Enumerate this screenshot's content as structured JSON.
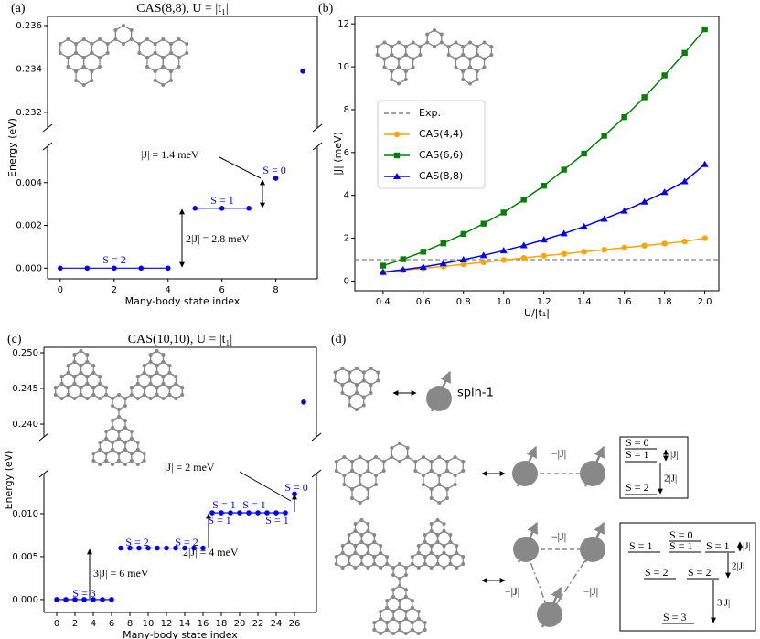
{
  "chart_data": [
    {
      "type": "scatter",
      "label": "(a)",
      "title": "CAS(8,8), U = |t₁|",
      "xlabel": "Many-body state index",
      "ylabel": "Energy (eV)",
      "color": "#0000ff",
      "x": [
        0,
        1,
        2,
        3,
        4,
        5,
        6,
        7,
        8,
        9
      ],
      "values": [
        0,
        0,
        0,
        0,
        0,
        0.0028,
        0.0028,
        0.0028,
        0.0042,
        0.2339
      ],
      "xlim": [
        -0.47,
        9.54
      ],
      "xticks": [
        0,
        2,
        4,
        6,
        8
      ],
      "ylim_lower": [
        -0.0005,
        0.0057
      ],
      "yticks_lower": [
        {
          "value": 0,
          "label": "0.000"
        },
        0.002,
        0.004
      ],
      "ylim_upper": [
        0.23128,
        0.23642
      ],
      "yticks_upper": [
        0.232,
        0.234,
        0.236
      ],
      "annotations": [
        "S = 2",
        "S = 1",
        "S = 0",
        "|J| = 1.4 meV",
        "2|J| = 2.8 meV"
      ]
    },
    {
      "type": "line",
      "label": "(b)",
      "xlabel": "U/|t₁|",
      "ylabel": "|J| (meV)",
      "x": [
        0.4,
        0.5,
        0.6,
        0.7,
        0.8,
        0.9,
        1.0,
        1.1,
        1.2,
        1.3,
        1.4,
        1.5,
        1.6,
        1.7,
        1.8,
        1.9,
        2.0
      ],
      "reference_line": {
        "name": "Exp.",
        "value": 1,
        "color": "#808080",
        "style": "dashed"
      },
      "series": [
        {
          "name": "CAS(4,4)",
          "color": "#ffa500",
          "marker": "o",
          "values": [
            0.4,
            0.5,
            0.6,
            0.68,
            0.78,
            0.88,
            0.98,
            1.08,
            1.18,
            1.27,
            1.37,
            1.46,
            1.56,
            1.65,
            1.75,
            1.85,
            2.0
          ]
        },
        {
          "name": "CAS(6,6)",
          "color": "#008000",
          "marker": "s",
          "values": [
            0.72,
            1.02,
            1.37,
            1.76,
            2.2,
            2.68,
            3.2,
            3.8,
            4.45,
            5.2,
            5.95,
            6.78,
            7.65,
            8.58,
            9.6,
            10.65,
            11.75
          ]
        },
        {
          "name": "CAS(8,8)",
          "color": "#0000ff",
          "marker": "^",
          "values": [
            0.42,
            0.53,
            0.66,
            0.82,
            1.0,
            1.2,
            1.42,
            1.66,
            1.93,
            2.22,
            2.55,
            2.9,
            3.28,
            3.7,
            4.15,
            4.65,
            5.45
          ]
        }
      ],
      "xlim": [
        0.26,
        2.07
      ],
      "xticks": [
        0.4,
        0.6,
        0.8,
        {
          "value": 1,
          "label": "1.0"
        },
        1.2,
        1.4,
        1.6,
        1.8,
        {
          "value": 2,
          "label": "2.0"
        }
      ],
      "ylim": [
        -0.45,
        12.35
      ],
      "yticks": [
        0,
        2,
        4,
        6,
        8,
        10,
        12
      ],
      "legend": "center left"
    },
    {
      "type": "scatter",
      "label": "(c)",
      "title": "CAS(10,10), U = |t₁|",
      "xlabel": "Many-body state index",
      "ylabel": "Energy (eV)",
      "color": "#0000ff",
      "x": [
        0,
        1,
        2,
        3,
        4,
        5,
        6,
        7,
        8,
        9,
        10,
        11,
        12,
        13,
        14,
        15,
        16,
        17,
        18,
        19,
        20,
        21,
        22,
        23,
        24,
        25,
        26,
        27
      ],
      "values": [
        0,
        0,
        0,
        0,
        0,
        0,
        0,
        0.006,
        0.006,
        0.006,
        0.006,
        0.006,
        0.006,
        0.006,
        0.006,
        0.006,
        0.006,
        0.0101,
        0.0101,
        0.0101,
        0.0101,
        0.0101,
        0.0101,
        0.0101,
        0.0101,
        0.0101,
        0.0123,
        0.2431
      ],
      "xlim": [
        -1.4,
        28.4
      ],
      "xticks": [
        0,
        2,
        4,
        6,
        8,
        10,
        12,
        14,
        16,
        18,
        20,
        22,
        24,
        26
      ],
      "ylim_lower": [
        -0.0015,
        0.01468
      ],
      "yticks_lower": [
        {
          "value": 0,
          "label": "0.000"
        },
        0.005,
        {
          "value": 0.01,
          "label": "0.010"
        }
      ],
      "ylim_upper": [
        0.23821,
        0.25077
      ],
      "yticks_upper": [
        {
          "value": 0.24,
          "label": "0.240"
        },
        0.245,
        {
          "value": 0.25,
          "label": "0.250"
        }
      ],
      "annotations": [
        "S = 3",
        "S = 2",
        "S = 2",
        "S = 1",
        "S = 1",
        "S = 1",
        "S = 1",
        "S = 0",
        "|J| = 2 meV",
        "2|J| = 4 meV",
        "3|J| = 6 meV"
      ]
    }
  ],
  "diagram": {
    "label": "(d)",
    "single": {
      "name": "spin-1"
    },
    "pair": {
      "coupling": "−|J|",
      "levels": [
        "S = 0",
        "S = 1",
        "S = 2"
      ],
      "gaps": [
        "|J|",
        "2|J|"
      ]
    },
    "triangle": {
      "couplings": [
        "−|J|",
        "−|J|",
        "−|J|"
      ],
      "levels": [
        "S = 1",
        "S = 0",
        "S = 1",
        "S = 1",
        "S = 2",
        "S = 2",
        "S = 3"
      ],
      "gaps": [
        "|J|",
        "2|J|",
        "3|J|"
      ]
    }
  }
}
